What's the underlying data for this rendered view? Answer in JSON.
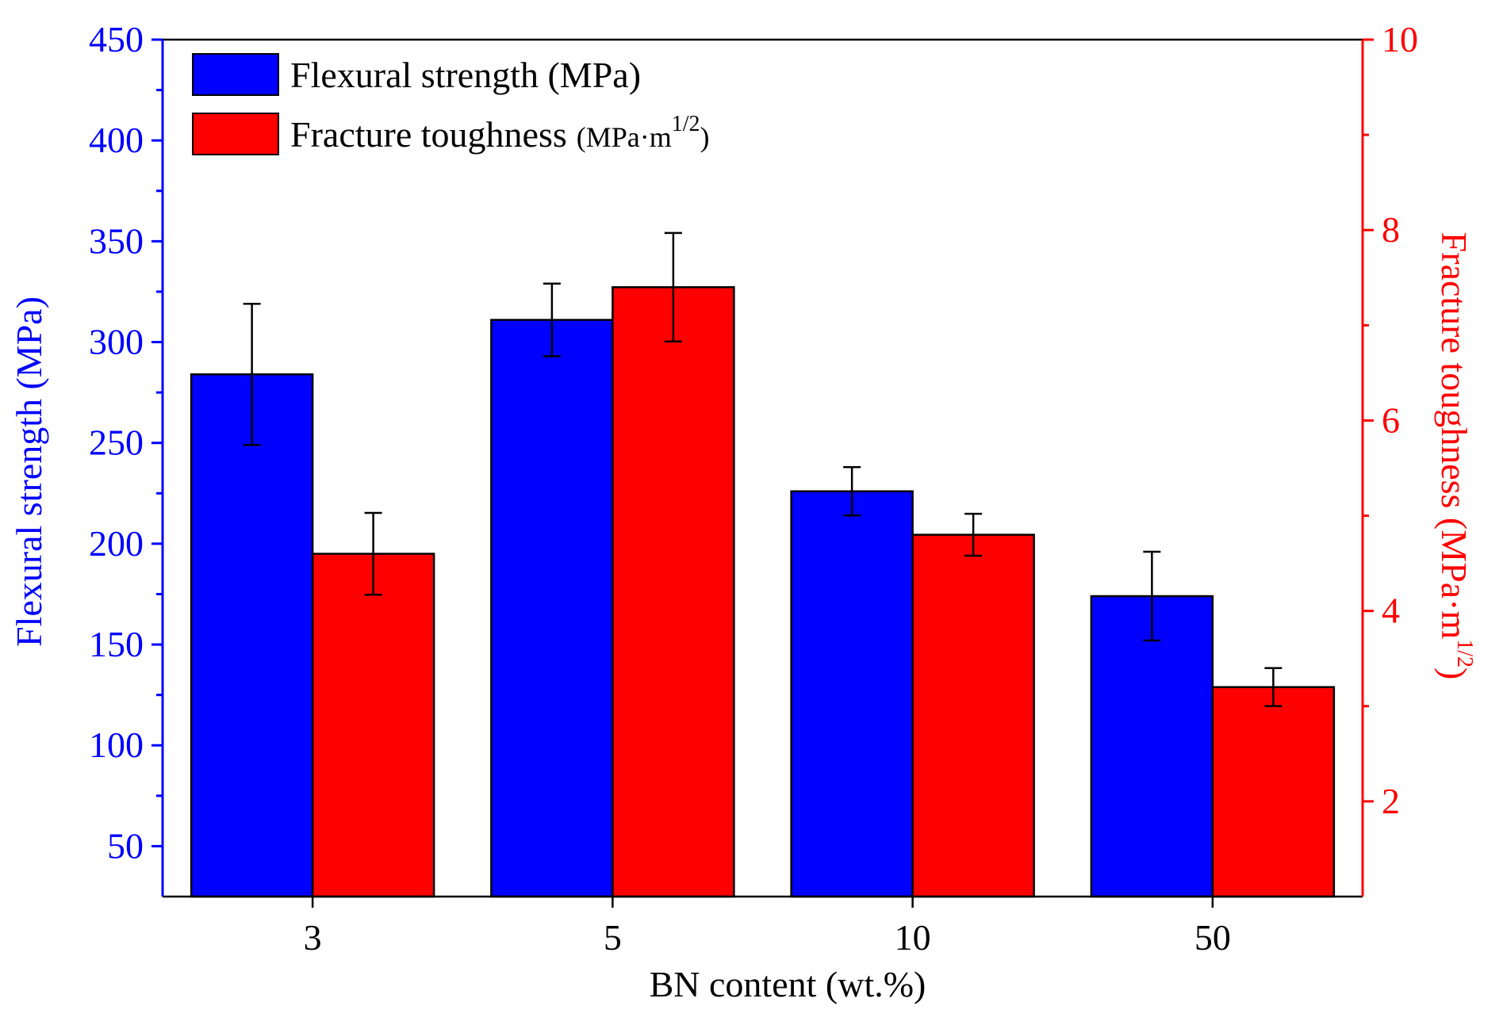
{
  "chart_data": {
    "type": "bar",
    "categories": [
      "3",
      "5",
      "10",
      "50"
    ],
    "xlabel": "BN content (wt.%)",
    "left_axis": {
      "label": "Flexural strength (MPa)",
      "ylim": [
        25,
        450
      ],
      "ticks": [
        50,
        100,
        150,
        200,
        250,
        300,
        350,
        400,
        450
      ],
      "color": "#0000ff"
    },
    "right_axis": {
      "label_main": "Fracture toughness (MPa·m",
      "label_sup": "1/2",
      "label_close": ")",
      "ylim": [
        1,
        10
      ],
      "ticks": [
        2,
        4,
        6,
        8,
        10
      ],
      "color": "#ff0000"
    },
    "series": [
      {
        "name": "Flexural strength (MPa)",
        "axis": "left",
        "color": "#0000ff",
        "values": [
          284,
          311,
          226,
          174
        ],
        "errors": [
          35,
          18,
          12,
          22
        ]
      },
      {
        "name_main": "Fracture toughness",
        "name_paren": "(MPa·m",
        "name_sup": "1/2",
        "name_close": ")",
        "axis": "right",
        "color": "#ff0000",
        "values": [
          4.6,
          7.4,
          4.8,
          3.2
        ],
        "errors": [
          0.43,
          0.57,
          0.22,
          0.2
        ]
      }
    ],
    "legend_position": "top-left",
    "grid": false
  }
}
